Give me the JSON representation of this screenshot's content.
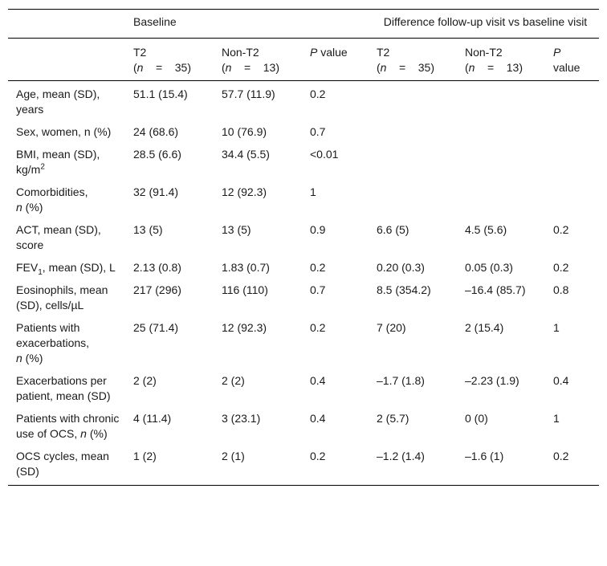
{
  "header": {
    "group_baseline": "Baseline",
    "group_difference": "Difference follow-up visit vs baseline visit",
    "col_t2": "T2",
    "col_nont2": "Non-T2",
    "col_p_italic": "P",
    "col_p_rest": " value",
    "n_open": "(",
    "n_letter": "n",
    "n_eq": "    =    ",
    "t2_n": "35)",
    "nont2_n": "13)",
    "p2_line1": "P",
    "p2_line2": "value"
  },
  "rows": [
    {
      "label": "Age, mean (SD), years",
      "t2": "51.1 (15.4)",
      "nont2": "57.7 (11.9)",
      "p": "0.2",
      "dt2": "",
      "dnont2": "",
      "dp": ""
    },
    {
      "label_a": "Sex, women, n (%)",
      "t2": "24 (68.6)",
      "nont2": "10 (76.9)",
      "p": "0.7",
      "dt2": "",
      "dnont2": "",
      "dp": ""
    },
    {
      "label_a": "BMI, mean (SD), kg/m",
      "label_sup": "2",
      "t2": "28.5 (6.6)",
      "nont2": "34.4 (5.5)",
      "p": "<0.01",
      "dt2": "",
      "dnont2": "",
      "dp": ""
    },
    {
      "label_a": "Comorbidities,",
      "label_i": "n",
      "label_b": " (%)",
      "t2": "32 (91.4)",
      "nont2": "12 (92.3)",
      "p": "1",
      "dt2": "",
      "dnont2": "",
      "dp": ""
    },
    {
      "label": "ACT, mean (SD), score",
      "t2": "13 (5)",
      "nont2": "13 (5)",
      "p": "0.9",
      "dt2": "6.6 (5)",
      "dnont2": "4.5 (5.6)",
      "dp": "0.2"
    },
    {
      "label_a": "FEV",
      "label_sub": "1",
      "label_b": ", mean (SD), L",
      "t2": "2.13 (0.8)",
      "nont2": "1.83 (0.7)",
      "p": "0.2",
      "dt2": "0.20 (0.3)",
      "dnont2": "0.05 (0.3)",
      "dp": "0.2"
    },
    {
      "label": "Eosinophils, mean (SD), cells/µL",
      "t2": "217 (296)",
      "nont2": "116 (110)",
      "p": "0.7",
      "dt2": "8.5 (354.2)",
      "dnont2": "–16.4 (85.7)",
      "dp": "0.8"
    },
    {
      "label_a": "Patients with exacerbations,",
      "label_i": "n",
      "label_b": " (%)",
      "t2": "25 (71.4)",
      "nont2": "12 (92.3)",
      "p": "0.2",
      "dt2": "7 (20)",
      "dnont2": "2 (15.4)",
      "dp": "1"
    },
    {
      "label": "Exacerbations per patient, mean (SD)",
      "t2": "2 (2)",
      "nont2": "2 (2)",
      "p": "0.4",
      "dt2": "–1.7 (1.8)",
      "dnont2": "–2.23 (1.9)",
      "dp": "0.4"
    },
    {
      "label_a": "Patients with chronic use of OCS,",
      "label_i": "n",
      "label_b": " (%)",
      "t2": "4 (11.4)",
      "nont2": "3 (23.1)",
      "p": "0.4",
      "dt2": "2 (5.7)",
      "dnont2": "0 (0)",
      "dp": "1"
    },
    {
      "label": "OCS cycles, mean (SD)",
      "t2": "1 (2)",
      "nont2": "2 (1)",
      "p": "0.2",
      "dt2": "–1.2 (1.4)",
      "dnont2": "–1.6 (1)",
      "dp": "0.2"
    }
  ]
}
